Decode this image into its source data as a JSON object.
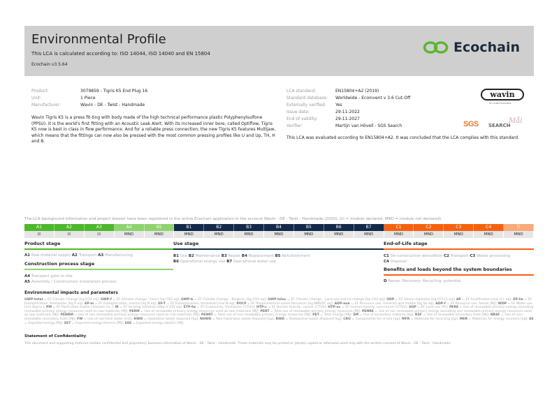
{
  "header": {
    "title": "Environmental Profile",
    "subtitle": "This LCA is calculated according to: ISO 14044, ISO 14040 and EN 15804",
    "version": "Ecochain v3.5.64",
    "brand": "Ecochain",
    "brand_color": "#5cb531"
  },
  "product_info": [
    {
      "label": "Product:",
      "value": "3079859 - Tigris K5 End Plug 16"
    },
    {
      "label": "Unit:",
      "value": "1 Piece"
    },
    {
      "label": "Manufacturer:",
      "value": "Wavin - DE - Twist - Handmade"
    }
  ],
  "description": "Wavin Tigris K5 is a press fit-ting with body made of the high technical performance plastic Polyphenylsulfone (PPSU). It is the world's first fitting with an Acoustic Leak Alert. With its increased inner bore, called Optiflow, Tigris K5 now is best in class in flow performance. And for a reliable press connection, the new Tigris K5 features Multijaw, which means that the fittings can now also be pressed with the most common pressing profiles like U and Up, TH, H and B.",
  "lca_info": [
    {
      "label": "LCA standard:",
      "value": "EN15804+A2 (2019)"
    },
    {
      "label": "Standard database:",
      "value": "Worldwide - Ecoinvent v 3.6 Cut-Off"
    },
    {
      "label": "Externally verified:",
      "value": "Yes"
    },
    {
      "label": "Issue date:",
      "value": "29-11-2022"
    },
    {
      "label": "End of validity:",
      "value": "29-11-2027"
    },
    {
      "label": "Verifier:",
      "value": "Martijn van Hövell - SGS Search"
    }
  ],
  "conclusion": "This LCA was evaluated according to EN15804+A2. It was concluded that the LCA complies with this standard.",
  "logos": {
    "wavin": "wavin",
    "wavin_sub": "An Orbia business",
    "sgs": "SGS",
    "search": "SEARCH",
    "signature": "Mål"
  },
  "notice": "The LCA background information and project dossier have been registered in the online Ecochain application in the account Wavin - DE - Twist - Handmade (2020). (☑ = module declared, MND = module not declared).",
  "modules": [
    {
      "code": "A1",
      "value": "☑",
      "color": "#4cb82c"
    },
    {
      "code": "A2",
      "value": "☑",
      "color": "#4cb82c"
    },
    {
      "code": "A3",
      "value": "☑",
      "color": "#4cb82c"
    },
    {
      "code": "A4",
      "value": "MND",
      "color": "#8fd36f"
    },
    {
      "code": "A5",
      "value": "MND",
      "color": "#8fd36f"
    },
    {
      "code": "B1",
      "value": "MND",
      "color": "#13294a"
    },
    {
      "code": "B2",
      "value": "MND",
      "color": "#13294a"
    },
    {
      "code": "B3",
      "value": "MND",
      "color": "#13294a"
    },
    {
      "code": "B4",
      "value": "MND",
      "color": "#13294a"
    },
    {
      "code": "B5",
      "value": "MND",
      "color": "#13294a"
    },
    {
      "code": "B6",
      "value": "MND",
      "color": "#13294a"
    },
    {
      "code": "B7",
      "value": "MND",
      "color": "#13294a"
    },
    {
      "code": "C1",
      "value": "MND",
      "color": "#f5620f"
    },
    {
      "code": "C2",
      "value": "MND",
      "color": "#f5620f"
    },
    {
      "code": "C3",
      "value": "MND",
      "color": "#f5620f"
    },
    {
      "code": "C4",
      "value": "MND",
      "color": "#f5620f"
    },
    {
      "code": "D",
      "value": "MND",
      "color": "#f9a97a"
    }
  ],
  "stages": {
    "product": {
      "title": "Product stage",
      "items": [
        [
          "A1",
          "Raw material supply"
        ],
        [
          "A2",
          "Transport"
        ],
        [
          "A3",
          "Manufacturing"
        ]
      ]
    },
    "construction": {
      "title": "Construction process stage",
      "items": [
        [
          "A4",
          "Transport gate to site"
        ],
        [
          "A5",
          "Assembly / Construction installation process"
        ]
      ]
    },
    "use": {
      "title": "Use stage",
      "items": [
        [
          "B1",
          "Use"
        ],
        [
          "B2",
          "Maintenance"
        ],
        [
          "B3",
          "Repair"
        ],
        [
          "B4",
          "Replacement"
        ],
        [
          "B5",
          "Refurbishment"
        ],
        [
          "B6",
          "Operational energy use"
        ],
        [
          "B7",
          "Operational water use"
        ]
      ]
    },
    "eol": {
      "title": "End-of-Life stage",
      "items": [
        [
          "C1",
          "De-construction demolition"
        ],
        [
          "C2",
          "Transport"
        ],
        [
          "C3",
          "Waste processing"
        ],
        [
          "C4",
          "Disposal"
        ]
      ]
    },
    "benefits": {
      "title": "Benefits and loads beyond the system boundaries",
      "items": [
        [
          "D",
          "Reuse- Recovery- Recycling- potential"
        ]
      ]
    }
  },
  "impacts_title": "Environmental impacts and parameters",
  "impacts": [
    [
      "GWP-total",
      "EF Climate Change [kg CO2 eq]"
    ],
    [
      "GWP-f",
      "EF Climate change - Fossil [kg CO2 eq]"
    ],
    [
      "GWP-b",
      "EF Climate Change - Biogenic [kg CO2 eq]"
    ],
    [
      "GWP-luluc",
      "EF Climate Change - Land use and LU change [kg CO2 eq]"
    ],
    [
      "ODP",
      "EF Ozone depletion [kg CFC11 eq]"
    ],
    [
      "AP",
      "EF Acidification [mol H+ eq]"
    ],
    [
      "EP-fw",
      "EF Eutrophication, freshwater [kg P eq]"
    ],
    [
      "EP-m",
      "EF Eutrophication, marine [kg N eq]"
    ],
    [
      "EP-T",
      "EF Eutrophication, terrestrial [mol N eq]"
    ],
    [
      "POCP",
      "EF Photochemical ozone formation [kg NMVOC eq]"
    ],
    [
      "ADP-mm",
      "EF Resource use, minerals and metals [kg Sb eq]"
    ],
    [
      "ADP-f",
      "EF Resource use, fossils [MJ]"
    ],
    [
      "WDP",
      "EF Water use [m3 depriv.]"
    ],
    [
      "PM",
      "EF Particulate matter [disease inc.]"
    ],
    [
      "IR",
      "EF Ionising radiation [kBq U-235 eq]"
    ],
    [
      "ETP-fw",
      "EF Ecotoxicity, freshwater [CTUe]"
    ],
    [
      "HTP-c",
      "EF Human toxicity, cancer [CTUh]"
    ],
    [
      "HTP-nc",
      "EF Human toxicity, non-cancer [CTUh]"
    ],
    [
      "SQP",
      "EF Land use [Pt]"
    ],
    [
      "PERE",
      "Use of renewable primary energy excluding renewable primary energy resources used as raw materials [MJ]"
    ],
    [
      "PERM",
      "Use of renewable primary energy resources used as raw materials [MJ]"
    ],
    [
      "PERT",
      "Total use of renewable primary energy resources [MJ]"
    ],
    [
      "PENRE",
      "Use of non renewable primary energy excluding non renewable primary energy resources used as raw materials [MJ]"
    ],
    [
      "PENRM",
      "Use of non renewable primary energy resources used as raw materials [MJ]"
    ],
    [
      "PENRT",
      "Total use of non renewable primary energy resources [MJ]"
    ],
    [
      "PET",
      "Total energy [MJ]"
    ],
    [
      "SM",
      "Use of secondary material [kg]"
    ],
    [
      "RSF",
      "Use of renewable secondary fuels [MJ]"
    ],
    [
      "NRSF",
      "Use of non-renewable secondary fuels [MJ]"
    ],
    [
      "FW",
      "Use of net fresh water [m3]"
    ],
    [
      "HWD",
      "Hazardous waste disposed [kg]"
    ],
    [
      "NHWD",
      "Non-hazardous waste disposed [kg]"
    ],
    [
      "RWD",
      "Radioactive waste disposed [kg]"
    ],
    [
      "CRU",
      "Components for re-use [kg]"
    ],
    [
      "MFR",
      "Materials for recycling [kg]"
    ],
    [
      "MER",
      "Materials for energy recovery [kg]"
    ],
    [
      "EE",
      "Exported energy [MJ]"
    ],
    [
      "EET",
      "Exported energy thermic [MJ]"
    ],
    [
      "EEE",
      "Exported energy electric [MJ]"
    ]
  ],
  "confidentiality": {
    "title": "Statement of Confidentiality",
    "text": "This document and supporting material contain confidential and proprietary business information of Wavin - DE - Twist - Handmade. These materials may be printed or (photo) copied or otherwise used only with the written consent of Wavin - DE - Twist - Handmade."
  }
}
